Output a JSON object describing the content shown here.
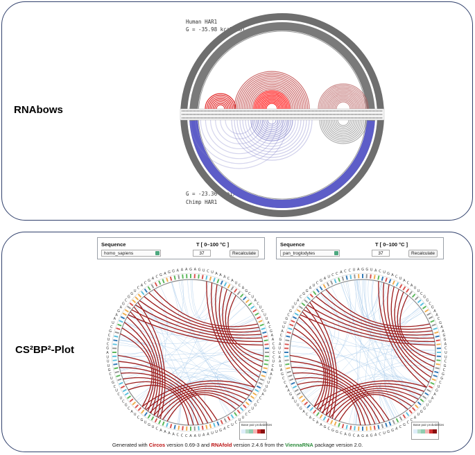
{
  "top_panel": {
    "label": "RNAbows",
    "human_title": "Human HAR1",
    "human_energy": "G = -35.98 kcal/mol",
    "chimp_energy": "G = -23.36 kcal/mol",
    "chimp_title": "Chimp HAR1",
    "colors": {
      "human_arcs": "#d22b2b",
      "chimp_arcs": "#5a5ad0",
      "outer_ring": "#808080"
    }
  },
  "bottom_panel": {
    "label": "CS²BP²-Plot",
    "left_controls": {
      "sequence_header": "Sequence",
      "temp_header": "T [ 0–100 °C ]",
      "species": "homo_sapiens",
      "temperature": "37",
      "button": "Recalculate"
    },
    "right_controls": {
      "sequence_header": "Sequence",
      "temp_header": "T [ 0–100 °C ]",
      "species": "pan_troglodytes",
      "temperature": "37",
      "button": "Recalculate"
    },
    "legend": {
      "title": "Base pair probabilities"
    },
    "footer": {
      "pre": "Generated with ",
      "circos": "Circos",
      "mid1": " version 0.69-3 and ",
      "rnafold": "RNAfold",
      "mid2": " version 2.4.6 from the ",
      "vienna": "ViennaRNA",
      "post": " package version 2.0."
    },
    "colors": {
      "pair_arcs": "#9b1b1b",
      "light_arcs": "#9ec5e8"
    }
  }
}
